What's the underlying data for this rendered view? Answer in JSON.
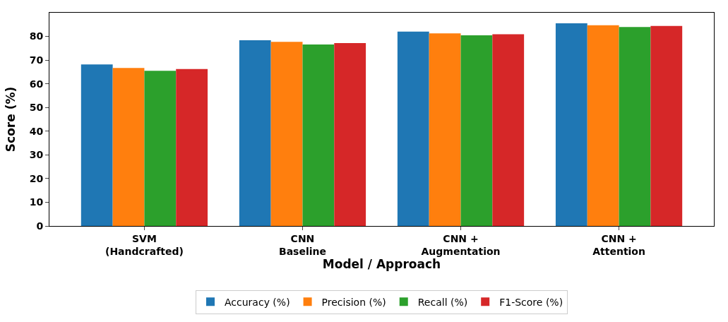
{
  "chart_data": {
    "type": "bar",
    "xlabel": "Model / Approach",
    "ylabel": "Score (%)",
    "categories": [
      "SVM\n(Handcrafted)",
      "CNN\nBaseline",
      "CNN +\nAugmentation",
      "CNN +\nAttention"
    ],
    "series": [
      {
        "name": "Accuracy (%)",
        "color": "#1f77b4",
        "values": [
          68.2,
          78.4,
          82.0,
          85.5
        ]
      },
      {
        "name": "Precision (%)",
        "color": "#ff7f0e",
        "values": [
          66.7,
          77.7,
          81.3,
          84.7
        ]
      },
      {
        "name": "Recall (%)",
        "color": "#2ca02c",
        "values": [
          65.5,
          76.6,
          80.5,
          84.0
        ]
      },
      {
        "name": "F1-Score (%)",
        "color": "#d62728",
        "values": [
          66.2,
          77.2,
          80.9,
          84.4
        ]
      }
    ],
    "ylim": [
      0,
      90
    ],
    "yticks": [
      0,
      10,
      20,
      30,
      40,
      50,
      60,
      70,
      80
    ],
    "legend": "bottom"
  }
}
